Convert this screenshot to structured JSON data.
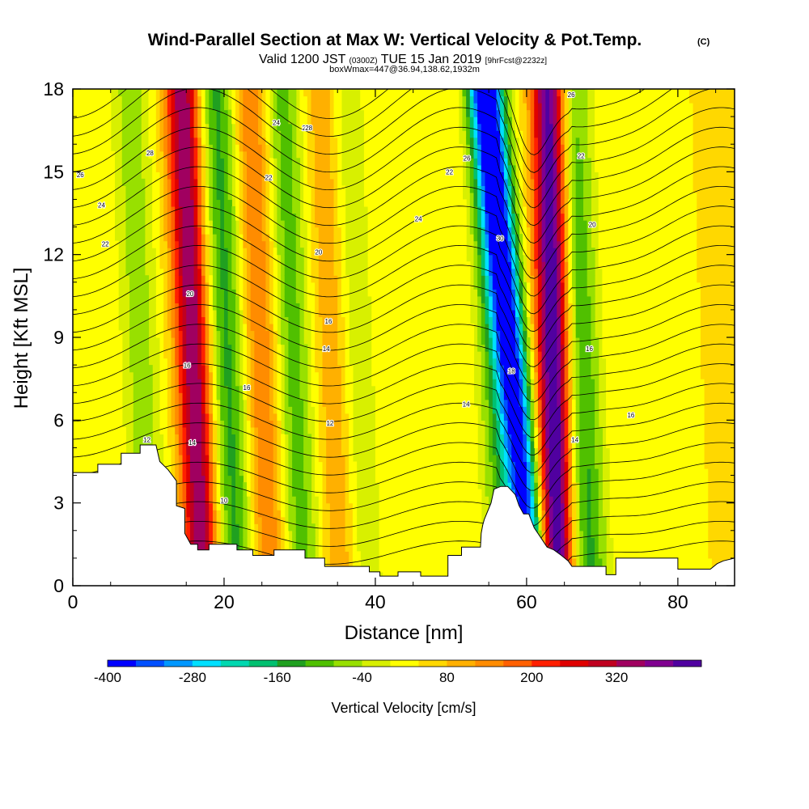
{
  "chart_data": {
    "type": "heatmap",
    "title": "Wind-Parallel Section at Max W: Vertical Velocity & Pot.Temp.",
    "title_mark": "(C)",
    "subtitle": {
      "p1": "Valid 1200 JST",
      "p2": "(0300Z)",
      "p3": "TUE 15 Jan 2019",
      "p4": "[9hrFcst@2232z]"
    },
    "subtitle2": "boxWmax=447@36.94,138.62,1932m",
    "xlabel": "Distance [nm]",
    "ylabel": "Height [Kft MSL]",
    "xlim": [
      0,
      87.5
    ],
    "ylim": [
      0,
      18
    ],
    "xticks": [
      0,
      20,
      40,
      60,
      80
    ],
    "yticks": [
      0,
      3,
      6,
      9,
      12,
      15,
      18
    ],
    "colorbar": {
      "label": "Vertical Velocity [cm/s]",
      "min": -400,
      "max": 440,
      "step": 40,
      "tick_labels": [
        "-400",
        "-280",
        "-160",
        "-40",
        "80",
        "200",
        "320"
      ],
      "tick_values": [
        -400,
        -280,
        -160,
        -40,
        80,
        200,
        320
      ],
      "colors": [
        "#0000ff",
        "#0050ff",
        "#0098ff",
        "#00e0ff",
        "#00d8b0",
        "#00c070",
        "#20a020",
        "#50c000",
        "#98e000",
        "#d8f000",
        "#ffff00",
        "#ffd800",
        "#ffb000",
        "#ff8c00",
        "#ff6000",
        "#ff2000",
        "#e00000",
        "#c00020",
        "#a00060",
        "#800090",
        "#5000a0"
      ]
    },
    "series": [
      {
        "name": "vertical velocity",
        "units": "cm/s",
        "features": [
          {
            "x": 9,
            "w": -100
          },
          {
            "x": 16,
            "w": 330
          },
          {
            "x": 20.5,
            "w": -180
          },
          {
            "x": 25,
            "w": 140
          },
          {
            "x": 29,
            "w": -150
          },
          {
            "x": 35,
            "w": 120
          },
          {
            "x": 37,
            "w": -120
          },
          {
            "x": 56,
            "w": -130
          },
          {
            "x": 59.5,
            "w": -400
          },
          {
            "x": 63.8,
            "w": 440
          },
          {
            "x": 67,
            "w": -180
          }
        ]
      },
      {
        "name": "potential temperature",
        "units": "C",
        "contour_labels": [
          "10",
          "12",
          "14",
          "16",
          "18",
          "20",
          "22",
          "24",
          "26",
          "28",
          "30"
        ]
      }
    ],
    "terrain": [
      [
        0,
        4.1
      ],
      [
        3.3,
        4.1
      ],
      [
        3.3,
        4.4
      ],
      [
        6.4,
        4.4
      ],
      [
        6.4,
        4.8
      ],
      [
        8.9,
        4.8
      ],
      [
        8.9,
        5.1
      ],
      [
        11,
        5.1
      ],
      [
        11.5,
        4.5
      ],
      [
        12.6,
        4.2
      ],
      [
        13.7,
        3.8
      ],
      [
        13.7,
        2.9
      ],
      [
        14.8,
        2.8
      ],
      [
        14.8,
        1.9
      ],
      [
        15.6,
        1.5
      ],
      [
        16.5,
        1.5
      ],
      [
        16.5,
        1.3
      ],
      [
        18,
        1.3
      ],
      [
        18,
        1.5
      ],
      [
        21.7,
        1.5
      ],
      [
        21.7,
        1.3
      ],
      [
        23.8,
        1.3
      ],
      [
        23.8,
        1.1
      ],
      [
        26.6,
        1.1
      ],
      [
        26.6,
        1.3
      ],
      [
        30.7,
        1.3
      ],
      [
        30.7,
        1
      ],
      [
        33.3,
        1
      ],
      [
        33.3,
        0.7
      ],
      [
        39.2,
        0.7
      ],
      [
        39.2,
        0.5
      ],
      [
        40.6,
        0.5
      ],
      [
        40.6,
        0.35
      ],
      [
        43,
        0.35
      ],
      [
        43,
        0.5
      ],
      [
        46,
        0.5
      ],
      [
        46,
        0.35
      ],
      [
        49.6,
        0.35
      ],
      [
        49.6,
        1.1
      ],
      [
        51.4,
        1.1
      ],
      [
        51.4,
        1.4
      ],
      [
        53.9,
        1.4
      ],
      [
        54,
        1.9
      ],
      [
        54.2,
        2.2
      ],
      [
        54.4,
        2.4
      ],
      [
        55.3,
        3
      ],
      [
        55.7,
        3.5
      ],
      [
        56.6,
        3.6
      ],
      [
        57.5,
        3.6
      ],
      [
        58.5,
        3.3
      ],
      [
        59,
        2.9
      ],
      [
        59.6,
        2.6
      ],
      [
        60.3,
        2.6
      ],
      [
        61,
        2.1
      ],
      [
        61.5,
        1.9
      ],
      [
        62.7,
        1.4
      ],
      [
        63.6,
        1.3
      ],
      [
        64.6,
        1.1
      ],
      [
        65.5,
        0.9
      ],
      [
        66,
        0.7
      ],
      [
        70.5,
        0.7
      ],
      [
        70.5,
        0.4
      ],
      [
        71.8,
        0.4
      ],
      [
        71.8,
        1
      ],
      [
        77,
        1
      ],
      [
        77,
        1
      ],
      [
        80,
        1
      ],
      [
        80,
        0.6
      ],
      [
        84.3,
        0.6
      ],
      [
        85.2,
        0.8
      ],
      [
        86,
        0.9
      ],
      [
        87.5,
        1
      ],
      [
        87.5,
        0
      ],
      [
        0,
        0
      ]
    ]
  }
}
